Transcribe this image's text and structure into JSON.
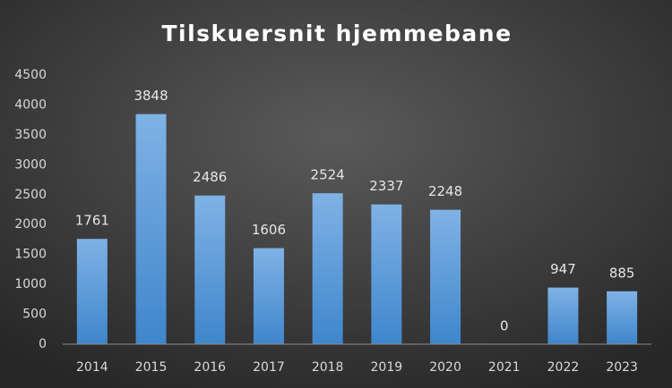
{
  "chart_data": {
    "type": "bar",
    "title": "Tilskuersnit hjemmebane",
    "categories": [
      "2014",
      "2015",
      "2016",
      "2017",
      "2018",
      "2019",
      "2020",
      "2021",
      "2022",
      "2023"
    ],
    "values": [
      1761,
      3848,
      2486,
      1606,
      2524,
      2337,
      2248,
      0,
      947,
      885
    ],
    "color": "#5b9bd5",
    "ylim": [
      0,
      4500
    ],
    "yticks": [
      0,
      500,
      1000,
      1500,
      2000,
      2500,
      3000,
      3500,
      4000,
      4500
    ],
    "grid": false
  }
}
